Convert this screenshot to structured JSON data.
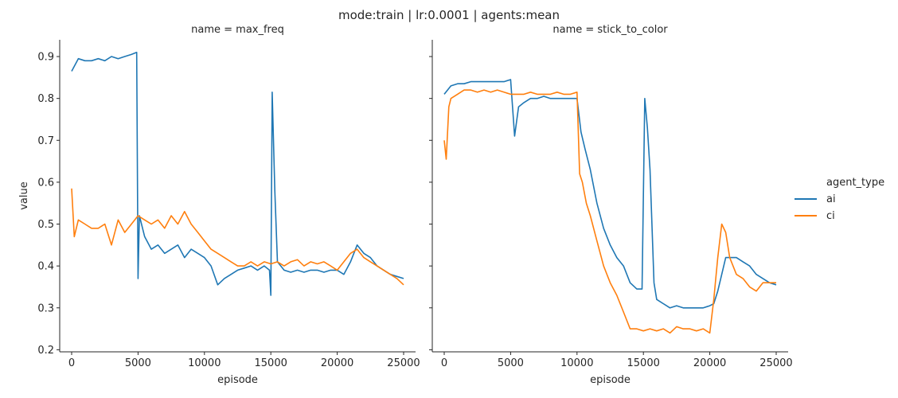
{
  "figure": {
    "suptitle": "mode:train | lr:0.0001 | agents:mean",
    "legend_title": "agent_type",
    "legend_placement": "right"
  },
  "colors": {
    "ai": "#1f77b4",
    "ci": "#ff7f0e",
    "axis": "#262626"
  },
  "chart_data": [
    {
      "type": "line",
      "title": "name = max_freq",
      "xlabel": "episode",
      "ylabel": "value",
      "xlim": [
        -900,
        25900
      ],
      "ylim": [
        0.195,
        0.94
      ],
      "xticks": [
        0,
        5000,
        10000,
        15000,
        20000,
        25000
      ],
      "yticks": [
        0.2,
        0.3,
        0.4,
        0.5,
        0.6,
        0.7,
        0.8,
        0.9
      ],
      "grid": false,
      "series": [
        {
          "name": "ai",
          "x": [
            0,
            500,
            1000,
            1500,
            2000,
            2500,
            3000,
            3500,
            4000,
            4500,
            4900,
            5000,
            5100,
            5500,
            6000,
            6500,
            7000,
            7500,
            8000,
            8500,
            9000,
            9500,
            10000,
            10500,
            11000,
            11500,
            12000,
            12500,
            13000,
            13500,
            14000,
            14500,
            14900,
            15000,
            15100,
            15300,
            15500,
            16000,
            16500,
            17000,
            17500,
            18000,
            18500,
            19000,
            19500,
            20000,
            20500,
            21000,
            21500,
            22000,
            22500,
            23000,
            23500,
            24000,
            24500,
            25000
          ],
          "values": [
            0.865,
            0.895,
            0.89,
            0.89,
            0.895,
            0.89,
            0.9,
            0.895,
            0.9,
            0.905,
            0.91,
            0.37,
            0.52,
            0.47,
            0.44,
            0.45,
            0.43,
            0.44,
            0.45,
            0.42,
            0.44,
            0.43,
            0.42,
            0.4,
            0.355,
            0.37,
            0.38,
            0.39,
            0.395,
            0.4,
            0.39,
            0.4,
            0.39,
            0.33,
            0.815,
            0.58,
            0.41,
            0.39,
            0.385,
            0.39,
            0.385,
            0.39,
            0.39,
            0.385,
            0.39,
            0.39,
            0.38,
            0.41,
            0.45,
            0.43,
            0.42,
            0.4,
            0.39,
            0.38,
            0.375,
            0.37
          ]
        },
        {
          "name": "ci",
          "x": [
            0,
            200,
            500,
            1000,
            1500,
            2000,
            2500,
            3000,
            3500,
            4000,
            4500,
            5000,
            5500,
            6000,
            6500,
            7000,
            7500,
            8000,
            8500,
            9000,
            9500,
            10000,
            10500,
            11000,
            11500,
            12000,
            12500,
            13000,
            13500,
            14000,
            14500,
            15000,
            15500,
            16000,
            16500,
            17000,
            17500,
            18000,
            18500,
            19000,
            19500,
            20000,
            20500,
            21000,
            21500,
            22000,
            22500,
            23000,
            23500,
            24000,
            24500,
            25000
          ],
          "values": [
            0.585,
            0.47,
            0.51,
            0.5,
            0.49,
            0.49,
            0.5,
            0.45,
            0.51,
            0.48,
            0.5,
            0.52,
            0.51,
            0.5,
            0.51,
            0.49,
            0.52,
            0.5,
            0.53,
            0.5,
            0.48,
            0.46,
            0.44,
            0.43,
            0.42,
            0.41,
            0.4,
            0.4,
            0.41,
            0.4,
            0.41,
            0.405,
            0.41,
            0.4,
            0.41,
            0.415,
            0.4,
            0.41,
            0.405,
            0.41,
            0.4,
            0.39,
            0.41,
            0.43,
            0.44,
            0.42,
            0.41,
            0.4,
            0.39,
            0.38,
            0.37,
            0.355
          ]
        }
      ]
    },
    {
      "type": "line",
      "title": "name = stick_to_color",
      "xlabel": "episode",
      "ylabel": "",
      "xlim": [
        -900,
        25900
      ],
      "ylim": [
        0.195,
        0.94
      ],
      "xticks": [
        0,
        5000,
        10000,
        15000,
        20000,
        25000
      ],
      "yticks": [
        0.2,
        0.3,
        0.4,
        0.5,
        0.6,
        0.7,
        0.8,
        0.9
      ],
      "grid": false,
      "series": [
        {
          "name": "ai",
          "x": [
            0,
            500,
            1000,
            1500,
            2000,
            2500,
            3000,
            3500,
            4000,
            4500,
            5000,
            5300,
            5600,
            6000,
            6500,
            7000,
            7500,
            8000,
            8500,
            9000,
            9500,
            10000,
            10300,
            10600,
            11000,
            11500,
            12000,
            12500,
            13000,
            13500,
            14000,
            14500,
            14900,
            15100,
            15300,
            15500,
            15800,
            16000,
            16500,
            17000,
            17500,
            18000,
            18500,
            19000,
            19500,
            20000,
            20300,
            20600,
            20900,
            21200,
            21500,
            22000,
            22500,
            23000,
            23500,
            24000,
            24500,
            25000
          ],
          "values": [
            0.81,
            0.83,
            0.835,
            0.835,
            0.84,
            0.84,
            0.84,
            0.84,
            0.84,
            0.84,
            0.845,
            0.71,
            0.78,
            0.79,
            0.8,
            0.8,
            0.805,
            0.8,
            0.8,
            0.8,
            0.8,
            0.8,
            0.72,
            0.68,
            0.63,
            0.55,
            0.49,
            0.45,
            0.42,
            0.4,
            0.36,
            0.345,
            0.345,
            0.8,
            0.73,
            0.63,
            0.36,
            0.32,
            0.31,
            0.3,
            0.305,
            0.3,
            0.3,
            0.3,
            0.3,
            0.305,
            0.31,
            0.34,
            0.38,
            0.42,
            0.42,
            0.42,
            0.41,
            0.4,
            0.38,
            0.37,
            0.36,
            0.355
          ]
        },
        {
          "name": "ci",
          "x": [
            0,
            150,
            350,
            500,
            1000,
            1500,
            2000,
            2500,
            3000,
            3500,
            4000,
            4500,
            5000,
            5500,
            6000,
            6500,
            7000,
            7500,
            8000,
            8500,
            9000,
            9500,
            10000,
            10200,
            10400,
            10700,
            11000,
            11500,
            12000,
            12500,
            13000,
            13500,
            14000,
            14500,
            15000,
            15500,
            16000,
            16500,
            17000,
            17500,
            18000,
            18500,
            19000,
            19500,
            20000,
            20300,
            20600,
            20900,
            21200,
            21500,
            22000,
            22500,
            23000,
            23500,
            24000,
            24500,
            25000
          ],
          "values": [
            0.7,
            0.655,
            0.78,
            0.8,
            0.81,
            0.82,
            0.82,
            0.815,
            0.82,
            0.815,
            0.82,
            0.815,
            0.81,
            0.81,
            0.81,
            0.815,
            0.81,
            0.81,
            0.81,
            0.815,
            0.81,
            0.81,
            0.815,
            0.62,
            0.6,
            0.55,
            0.52,
            0.46,
            0.4,
            0.36,
            0.33,
            0.29,
            0.25,
            0.25,
            0.245,
            0.25,
            0.245,
            0.25,
            0.24,
            0.255,
            0.25,
            0.25,
            0.245,
            0.25,
            0.24,
            0.32,
            0.42,
            0.5,
            0.48,
            0.42,
            0.38,
            0.37,
            0.35,
            0.34,
            0.36,
            0.36,
            0.36
          ]
        }
      ]
    }
  ]
}
